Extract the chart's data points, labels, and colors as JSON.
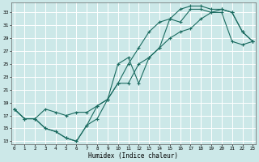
{
  "xlabel": "Humidex (Indice chaleur)",
  "bg_color": "#cce8e8",
  "grid_color": "#ffffff",
  "line_color": "#1a6b60",
  "x_ticks": [
    0,
    1,
    2,
    3,
    4,
    5,
    6,
    7,
    8,
    9,
    10,
    11,
    12,
    13,
    14,
    15,
    16,
    17,
    18,
    19,
    20,
    21,
    22,
    23
  ],
  "y_ticks": [
    13,
    15,
    17,
    19,
    21,
    23,
    25,
    27,
    29,
    31,
    33
  ],
  "xlim": [
    -0.3,
    23.3
  ],
  "ylim": [
    12.5,
    34.5
  ],
  "line1_x": [
    0,
    1,
    2,
    3,
    4,
    5,
    6,
    7,
    8,
    9,
    10,
    11,
    12,
    13,
    14,
    15,
    16,
    17,
    18,
    19,
    20,
    21,
    22,
    23
  ],
  "line1_y": [
    18.0,
    16.5,
    16.5,
    15.0,
    14.5,
    13.5,
    13.0,
    15.5,
    18.5,
    19.5,
    25.0,
    26.0,
    22.0,
    26.0,
    27.5,
    32.0,
    31.5,
    33.5,
    33.5,
    33.0,
    33.5,
    33.0,
    30.0,
    28.5
  ],
  "line2_x": [
    0,
    1,
    2,
    3,
    4,
    5,
    6,
    7,
    8,
    9,
    10,
    11,
    12,
    13,
    14,
    15,
    16,
    17,
    18,
    19,
    20,
    21,
    22,
    23
  ],
  "line2_y": [
    18.0,
    16.5,
    16.5,
    18.0,
    17.5,
    17.0,
    17.5,
    17.5,
    18.5,
    19.5,
    22.0,
    25.0,
    27.5,
    30.0,
    31.5,
    32.0,
    33.5,
    34.0,
    34.0,
    33.5,
    33.5,
    33.0,
    30.0,
    28.5
  ],
  "line3_x": [
    0,
    1,
    2,
    3,
    4,
    5,
    6,
    7,
    8,
    9,
    10,
    11,
    12,
    13,
    14,
    15,
    16,
    17,
    18,
    19,
    20,
    21,
    22,
    23
  ],
  "line3_y": [
    18.0,
    16.5,
    16.5,
    15.0,
    14.5,
    13.5,
    13.0,
    15.5,
    16.5,
    19.5,
    22.0,
    22.0,
    25.0,
    26.0,
    27.5,
    29.0,
    30.0,
    30.5,
    32.0,
    33.0,
    33.0,
    28.5,
    28.0,
    28.5
  ]
}
